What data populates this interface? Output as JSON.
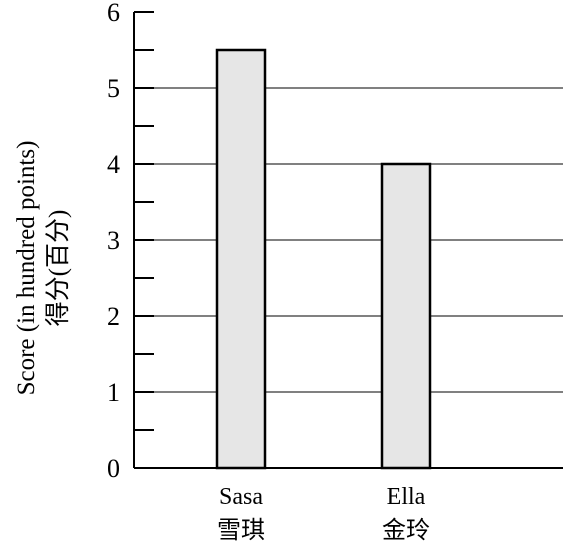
{
  "chart_data": {
    "type": "bar",
    "categories": [
      "Sasa",
      "Ella"
    ],
    "categories_secondary": [
      "雪琪",
      "金玲"
    ],
    "values": [
      5.5,
      4
    ],
    "ylabel": "Score (in hundred points)",
    "ylabel_secondary": "得分(百分)",
    "ylim": [
      0,
      6
    ],
    "yticks": [
      "0",
      "1",
      "2",
      "3",
      "4",
      "5",
      "6"
    ],
    "minor_tick_step": 0.5,
    "grid": true,
    "bar_fill": "#e6e6e6",
    "bar_stroke": "#000000",
    "grid_color": "#000000"
  }
}
